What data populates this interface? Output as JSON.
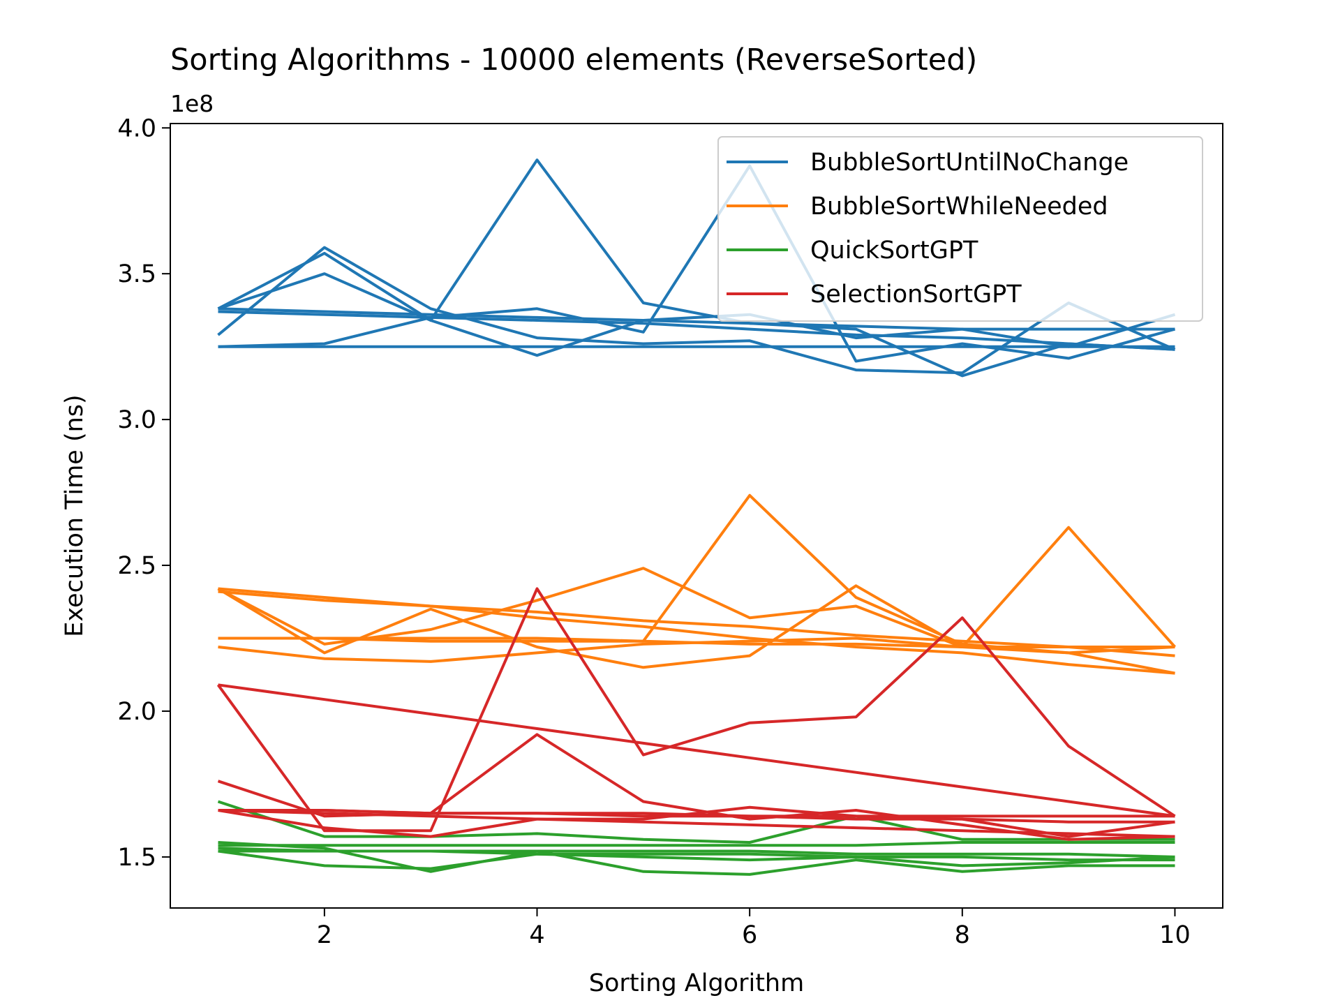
{
  "chart_data": {
    "type": "line",
    "title": "Sorting Algorithms - 10000 elements (ReverseSorted)",
    "xlabel": "Sorting Algorithm",
    "ylabel": "Execution Time (ns)",
    "offset_text": "1e8",
    "xlim": [
      0.55,
      10.45
    ],
    "ylim": [
      1.325,
      4.015
    ],
    "x_ticks": [
      2,
      4,
      6,
      8,
      10
    ],
    "x_tick_labels": [
      "2",
      "4",
      "6",
      "8",
      "10"
    ],
    "y_ticks": [
      1.5,
      2.0,
      2.5,
      3.0,
      3.5,
      4.0
    ],
    "y_tick_labels": [
      "1.5",
      "2.0",
      "2.5",
      "3.0",
      "3.5",
      "4.0"
    ],
    "grid": false,
    "legend_position": "top-right",
    "x": [
      1,
      2,
      3,
      4,
      5,
      6,
      7,
      8,
      9,
      10
    ],
    "series": [
      {
        "name": "BubbleSortUntilNoChange",
        "color": "#1f77b4",
        "runs": [
          [
            3.29,
            3.59,
            3.38,
            3.28,
            3.26,
            3.27,
            3.17,
            3.16,
            3.4,
            3.24
          ],
          [
            3.38,
            3.57,
            3.34,
            3.89,
            3.4,
            3.33,
            3.31,
            3.15,
            3.26,
            3.24
          ],
          [
            3.25,
            3.26,
            3.35,
            3.38,
            3.3,
            3.87,
            3.2,
            3.26,
            3.21,
            3.31
          ],
          [
            3.38,
            3.5,
            3.34,
            3.22,
            3.34,
            3.36,
            3.28,
            3.31,
            3.25,
            3.36
          ],
          [
            3.38,
            3.37,
            3.36,
            3.35,
            3.34,
            3.33,
            3.32,
            3.31,
            3.31,
            3.31
          ],
          [
            3.37,
            3.36,
            3.35,
            3.34,
            3.33,
            3.31,
            3.29,
            3.28,
            3.26,
            3.24
          ],
          [
            3.25,
            3.25,
            3.25,
            3.25,
            3.25,
            3.25,
            3.25,
            3.25,
            3.25,
            3.25
          ]
        ]
      },
      {
        "name": "BubbleSortWhileNeeded",
        "color": "#ff7f0e",
        "runs": [
          [
            2.42,
            2.2,
            2.35,
            2.22,
            2.15,
            2.19,
            2.43,
            2.22,
            2.2,
            2.22
          ],
          [
            2.42,
            2.23,
            2.28,
            2.38,
            2.49,
            2.32,
            2.36,
            2.22,
            2.63,
            2.22
          ],
          [
            2.25,
            2.25,
            2.25,
            2.25,
            2.24,
            2.74,
            2.39,
            2.23,
            2.2,
            2.13
          ],
          [
            2.22,
            2.18,
            2.17,
            2.2,
            2.23,
            2.24,
            2.25,
            2.22,
            2.22,
            2.22
          ],
          [
            2.41,
            2.38,
            2.36,
            2.34,
            2.31,
            2.29,
            2.26,
            2.24,
            2.22,
            2.19
          ],
          [
            2.42,
            2.39,
            2.36,
            2.32,
            2.29,
            2.25,
            2.22,
            2.2,
            2.16,
            2.13
          ],
          [
            2.25,
            2.25,
            2.24,
            2.24,
            2.24,
            2.23,
            2.23,
            2.22,
            2.22,
            2.22
          ]
        ]
      },
      {
        "name": "QuickSortGPT",
        "color": "#2ca02c",
        "runs": [
          [
            1.69,
            1.57,
            1.57,
            1.58,
            1.56,
            1.55,
            1.64,
            1.56,
            1.56,
            1.56
          ],
          [
            1.52,
            1.47,
            1.46,
            1.51,
            1.5,
            1.49,
            1.5,
            1.47,
            1.48,
            1.5
          ],
          [
            1.55,
            1.53,
            1.45,
            1.52,
            1.45,
            1.44,
            1.49,
            1.45,
            1.47,
            1.47
          ],
          [
            1.53,
            1.52,
            1.52,
            1.51,
            1.51,
            1.51,
            1.5,
            1.5,
            1.49,
            1.49
          ],
          [
            1.54,
            1.54,
            1.54,
            1.54,
            1.54,
            1.54,
            1.54,
            1.55,
            1.55,
            1.55
          ],
          [
            1.52,
            1.52,
            1.52,
            1.52,
            1.52,
            1.52,
            1.51,
            1.51,
            1.51,
            1.5
          ]
        ]
      },
      {
        "name": "SelectionSortGPT",
        "color": "#d62728",
        "runs": [
          [
            2.09,
            1.59,
            1.59,
            2.42,
            1.85,
            1.96,
            1.98,
            2.32,
            1.88,
            1.64
          ],
          [
            1.76,
            1.64,
            1.65,
            1.92,
            1.69,
            1.63,
            1.66,
            1.61,
            1.56,
            1.57
          ],
          [
            1.66,
            1.6,
            1.57,
            1.63,
            1.63,
            1.67,
            1.64,
            1.63,
            1.57,
            1.62
          ],
          [
            2.09,
            2.04,
            1.99,
            1.94,
            1.89,
            1.84,
            1.79,
            1.74,
            1.69,
            1.64
          ],
          [
            1.66,
            1.66,
            1.65,
            1.65,
            1.65,
            1.64,
            1.64,
            1.64,
            1.64,
            1.64
          ],
          [
            1.66,
            1.65,
            1.64,
            1.63,
            1.62,
            1.61,
            1.6,
            1.59,
            1.58,
            1.57
          ],
          [
            1.66,
            1.66,
            1.65,
            1.65,
            1.64,
            1.64,
            1.63,
            1.63,
            1.62,
            1.62
          ]
        ]
      }
    ]
  }
}
